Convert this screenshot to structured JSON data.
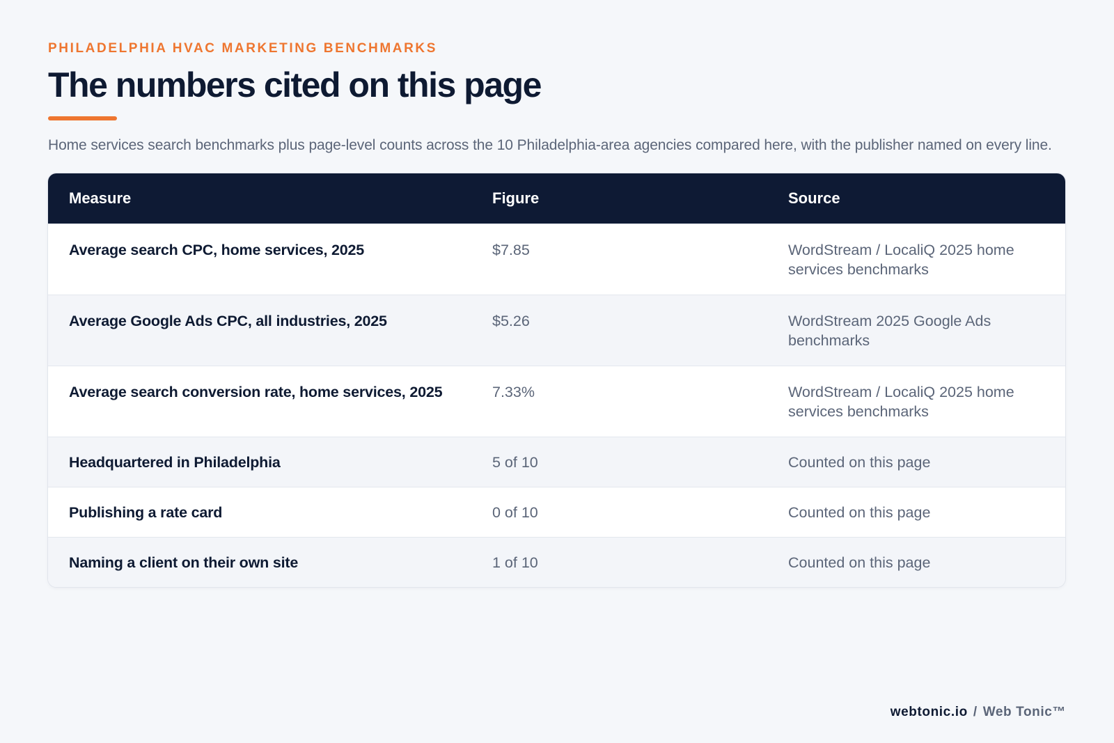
{
  "header": {
    "eyebrow": "PHILADELPHIA HVAC MARKETING BENCHMARKS",
    "title": "The numbers cited on this page",
    "subtitle": "Home services search benchmarks plus page-level counts across the 10 Philadelphia-area agencies compared here, with the publisher named on every line.",
    "accent_color": "#ee7630"
  },
  "table": {
    "header_color": "#0e1a34",
    "columns": [
      "Measure",
      "Figure",
      "Source"
    ],
    "rows": [
      {
        "measure": "Average search CPC, home services, 2025",
        "figure": "$7.85",
        "source": "WordStream / LocaliQ 2025 home services benchmarks"
      },
      {
        "measure": "Average Google Ads CPC, all industries, 2025",
        "figure": "$5.26",
        "source": "WordStream 2025 Google Ads benchmarks"
      },
      {
        "measure": "Average search conversion rate, home services, 2025",
        "figure": "7.33%",
        "source": "WordStream / LocaliQ 2025 home services benchmarks"
      },
      {
        "measure": "Headquartered in Philadelphia",
        "figure": "5 of 10",
        "source": "Counted on this page"
      },
      {
        "measure": "Publishing a rate card",
        "figure": "0 of 10",
        "source": "Counted on this page"
      },
      {
        "measure": "Naming a client on their own site",
        "figure": "1 of 10",
        "source": "Counted on this page"
      }
    ]
  },
  "footer": {
    "url": "webtonic.io",
    "separator": "/",
    "brand": "Web Tonic™"
  }
}
